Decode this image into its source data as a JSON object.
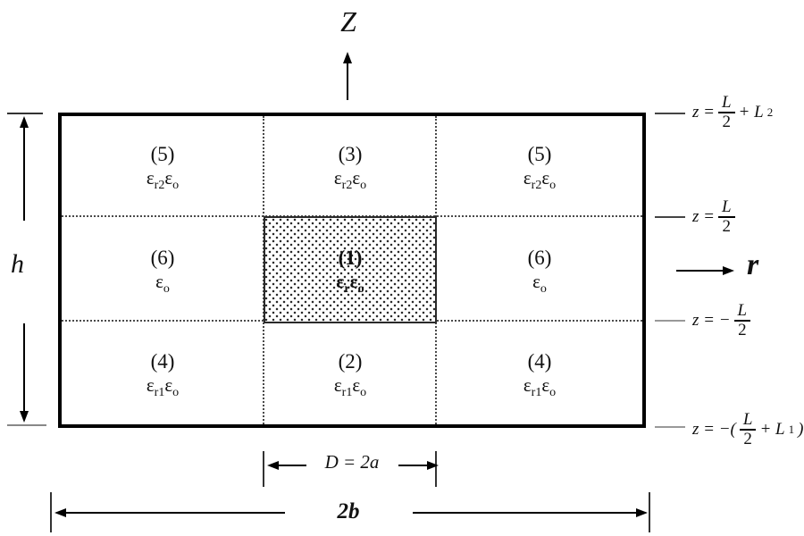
{
  "axes": {
    "z_axis_label": "Z",
    "r_axis_label": "r"
  },
  "regions": {
    "grid": [
      {
        "id": "5-top-left",
        "num": "(5)",
        "eps": "ε_{r2}ε_{o}",
        "row": 0,
        "col": 0,
        "bold": false,
        "shaded": false
      },
      {
        "id": "3-top-center",
        "num": "(3)",
        "eps": "ε_{r2}ε_{o}",
        "row": 0,
        "col": 1,
        "bold": false,
        "shaded": false
      },
      {
        "id": "5-top-right",
        "num": "(5)",
        "eps": "ε_{r2}ε_{o}",
        "row": 0,
        "col": 2,
        "bold": false,
        "shaded": false
      },
      {
        "id": "6-mid-left",
        "num": "(6)",
        "eps": "ε_{o}",
        "row": 1,
        "col": 0,
        "bold": false,
        "shaded": false
      },
      {
        "id": "1-core",
        "num": "(1)",
        "eps": "ε_{r}ε_{o}",
        "row": 1,
        "col": 1,
        "bold": true,
        "shaded": true
      },
      {
        "id": "6-mid-right",
        "num": "(6)",
        "eps": "ε_{o}",
        "row": 1,
        "col": 2,
        "bold": false,
        "shaded": false
      },
      {
        "id": "4-bottom-left",
        "num": "(4)",
        "eps": "ε_{r1}ε_{o}",
        "row": 2,
        "col": 0,
        "bold": false,
        "shaded": false
      },
      {
        "id": "2-bottom-center",
        "num": "(2)",
        "eps": "ε_{r1}ε_{o}",
        "row": 2,
        "col": 1,
        "bold": false,
        "shaded": false
      },
      {
        "id": "4-bottom-right",
        "num": "(4)",
        "eps": "ε_{r1}ε_{o}",
        "row": 2,
        "col": 2,
        "bold": false,
        "shaded": false
      }
    ]
  },
  "z_levels": [
    {
      "pre": "z =",
      "num": "L",
      "den": "2",
      "post": "+ L",
      "post_sub": "2",
      "close": ""
    },
    {
      "pre": "z =",
      "num": "L",
      "den": "2",
      "post": "",
      "post_sub": "",
      "close": ""
    },
    {
      "pre": "z = −",
      "num": "L",
      "den": "2",
      "post": "",
      "post_sub": "",
      "close": ""
    },
    {
      "pre": "z = −(",
      "num": "L",
      "den": "2",
      "post": "+ L",
      "post_sub": "1",
      "close": ")"
    }
  ],
  "dimensions": {
    "height_label": "h",
    "width_label": "2b",
    "diameter_label": "D = 2a"
  }
}
